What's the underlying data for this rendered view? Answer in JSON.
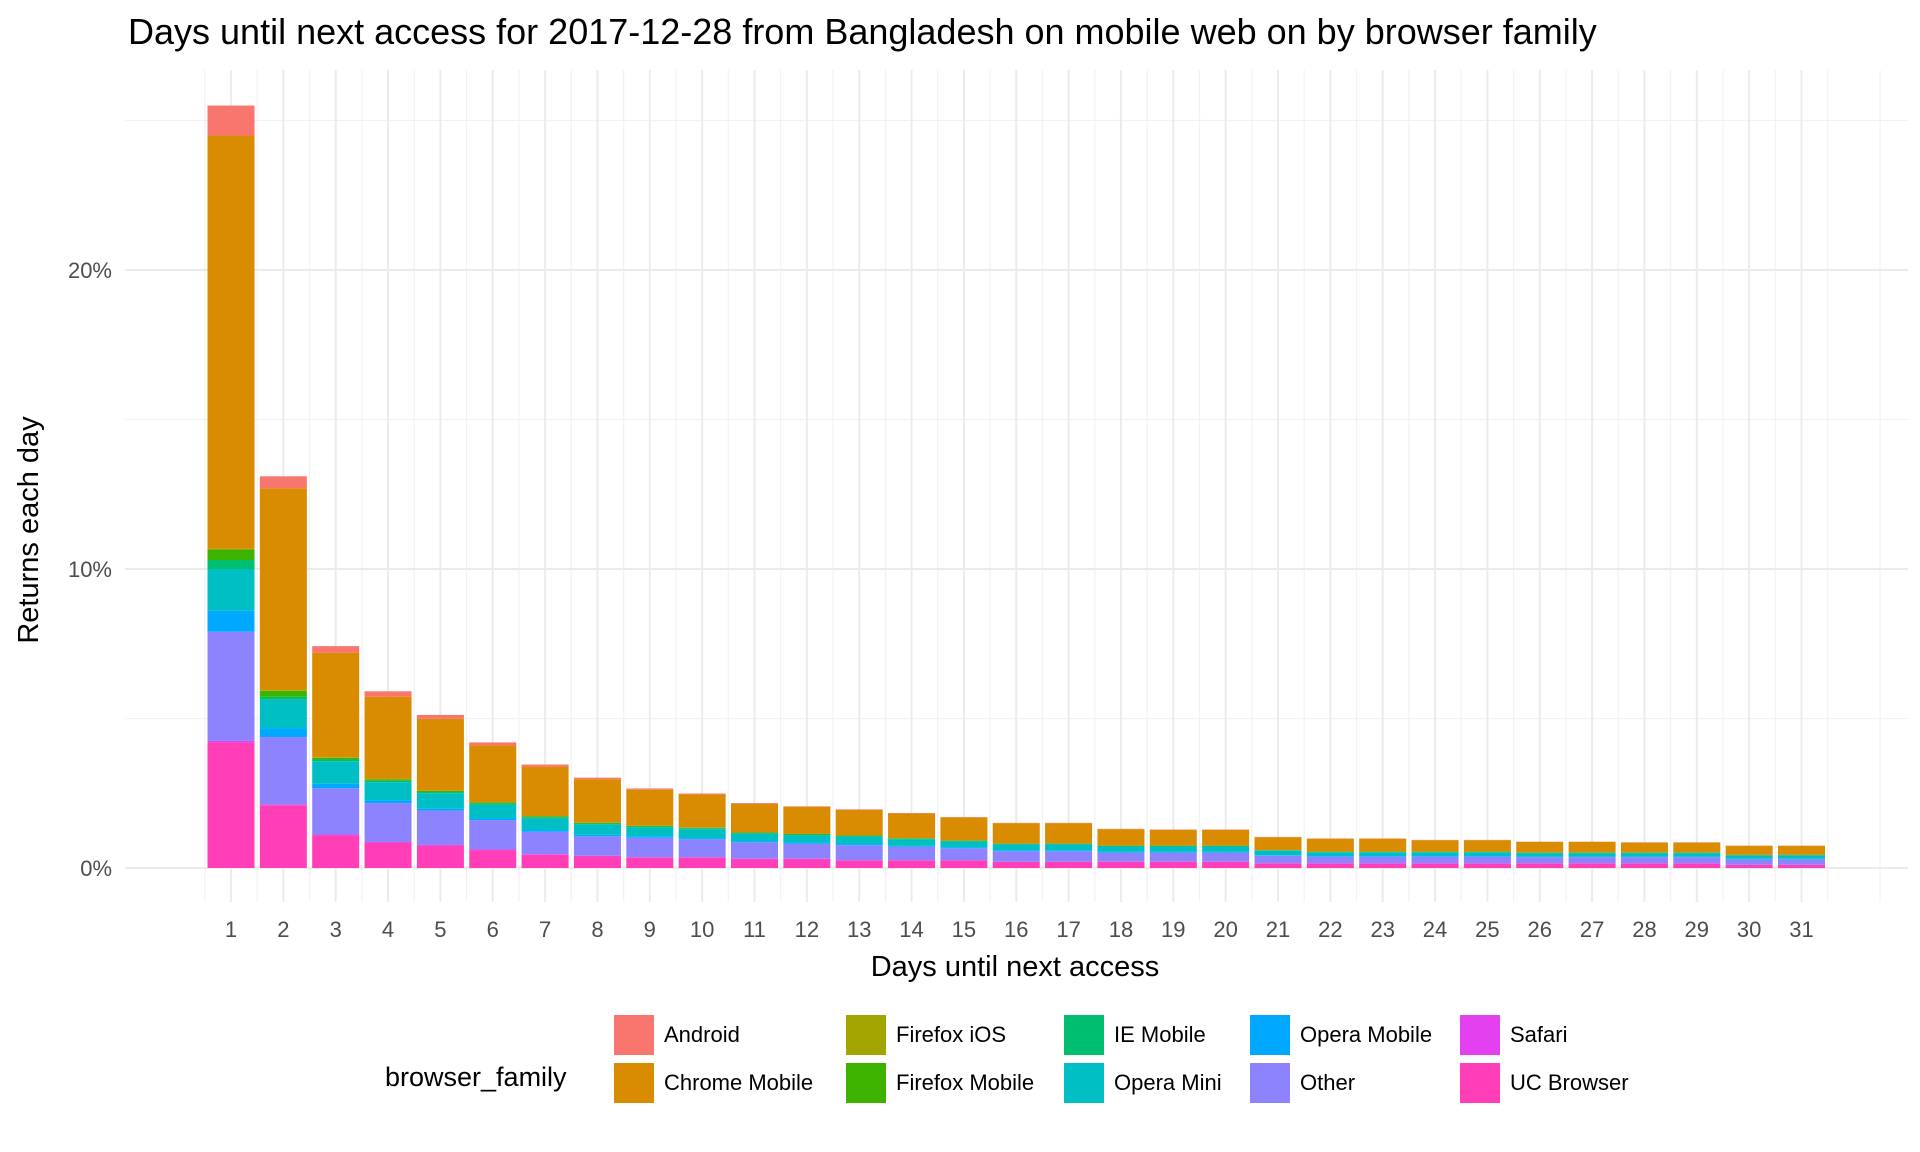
{
  "chart_data": {
    "type": "bar",
    "stacked": true,
    "title": "Days until next access for 2017-12-28 from Bangladesh on mobile web on by browser family",
    "xlabel": "Days until next access",
    "ylabel": "Returns each day",
    "ylim": [
      0,
      0.262
    ],
    "yticks": [
      0,
      0.1,
      0.2
    ],
    "ytick_labels": [
      "0%",
      "10%",
      "20%"
    ],
    "grid": true,
    "legend": {
      "title": "browser_family",
      "position": "bottom"
    },
    "categories": [
      "1",
      "2",
      "3",
      "4",
      "5",
      "6",
      "7",
      "8",
      "9",
      "10",
      "11",
      "12",
      "13",
      "14",
      "15",
      "16",
      "17",
      "18",
      "19",
      "20",
      "21",
      "22",
      "23",
      "24",
      "25",
      "26",
      "27",
      "28",
      "29",
      "30",
      "31"
    ],
    "series": [
      {
        "name": "UC Browser",
        "color": "#FF3EB8",
        "values": [
          0.042,
          0.021,
          0.011,
          0.0085,
          0.0075,
          0.006,
          0.0045,
          0.004,
          0.0035,
          0.0035,
          0.003,
          0.003,
          0.0025,
          0.0025,
          0.0025,
          0.002,
          0.002,
          0.002,
          0.002,
          0.002,
          0.0015,
          0.0015,
          0.0015,
          0.0015,
          0.0015,
          0.0015,
          0.0015,
          0.0015,
          0.0015,
          0.001,
          0.001
        ]
      },
      {
        "name": "Safari",
        "color": "#E341F0",
        "values": [
          0.0005,
          0.0003,
          0.0002,
          0.0002,
          0.0002,
          0.0002,
          0.0001,
          0.0001,
          0.0001,
          0.0001,
          0.0001,
          0.0001,
          0.0001,
          0.0001,
          0.0001,
          0.0001,
          0.0001,
          0.0001,
          0.0001,
          0.0001,
          0.0001,
          0.0001,
          0.0001,
          0.0001,
          0.0001,
          0.0001,
          0.0001,
          0.0001,
          0.0001,
          0.0001,
          0.0001
        ]
      },
      {
        "name": "Other",
        "color": "#8E83FF",
        "values": [
          0.0365,
          0.0225,
          0.0155,
          0.013,
          0.0115,
          0.0098,
          0.0075,
          0.0065,
          0.0065,
          0.006,
          0.0055,
          0.005,
          0.005,
          0.0045,
          0.004,
          0.0035,
          0.0035,
          0.003,
          0.003,
          0.003,
          0.0025,
          0.0022,
          0.0022,
          0.0022,
          0.0022,
          0.002,
          0.002,
          0.002,
          0.002,
          0.0018,
          0.0018
        ]
      },
      {
        "name": "Opera Mobile",
        "color": "#00A9FF",
        "values": [
          0.007,
          0.003,
          0.0015,
          0.001,
          0.0008,
          0.0007,
          0.0006,
          0.0005,
          0.0005,
          0.0004,
          0.0004,
          0.0004,
          0.0004,
          0.0003,
          0.0003,
          0.0003,
          0.0003,
          0.0003,
          0.0003,
          0.0003,
          0.0002,
          0.0002,
          0.0002,
          0.0002,
          0.0002,
          0.0002,
          0.0002,
          0.0002,
          0.0002,
          0.0002,
          0.0002
        ]
      },
      {
        "name": "Opera Mini",
        "color": "#00BFC4",
        "values": [
          0.014,
          0.0095,
          0.0075,
          0.006,
          0.005,
          0.0045,
          0.004,
          0.0035,
          0.003,
          0.003,
          0.0025,
          0.0025,
          0.0025,
          0.0022,
          0.002,
          0.002,
          0.002,
          0.0018,
          0.0018,
          0.0018,
          0.0015,
          0.0013,
          0.0013,
          0.0013,
          0.0013,
          0.0012,
          0.0012,
          0.0012,
          0.0012,
          0.0011,
          0.0011
        ]
      },
      {
        "name": "IE Mobile",
        "color": "#00BE6F",
        "values": [
          0.003,
          0.001,
          0.0006,
          0.0005,
          0.0004,
          0.0004,
          0.0003,
          0.0003,
          0.0003,
          0.0003,
          0.0002,
          0.0002,
          0.0002,
          0.0002,
          0.0002,
          0.0002,
          0.0002,
          0.0002,
          0.0002,
          0.0002,
          0.0001,
          0.0001,
          0.0001,
          0.0001,
          0.0001,
          0.0001,
          0.0001,
          0.0001,
          0.0001,
          0.0001,
          0.0001
        ]
      },
      {
        "name": "Firefox Mobile",
        "color": "#3DB300",
        "values": [
          0.0035,
          0.002,
          0.0006,
          0.0005,
          0.0004,
          0.0003,
          0.0003,
          0.0002,
          0.0002,
          0.0002,
          0.0002,
          0.0002,
          0.0002,
          0.0002,
          0.0001,
          0.0001,
          0.0001,
          0.0001,
          0.0001,
          0.0001,
          0.0001,
          0.0001,
          0.0001,
          0.0001,
          0.0001,
          0.0001,
          0.0001,
          0.0001,
          0.0001,
          0.0001,
          0.0001
        ]
      },
      {
        "name": "Firefox iOS",
        "color": "#A3A500",
        "values": [
          0.0003,
          0.0002,
          0.0001,
          0.0001,
          0.0001,
          0.0001,
          0.0001,
          0.0001,
          0.0001,
          0.0001,
          0,
          0,
          0,
          0,
          0,
          0,
          0,
          0,
          0,
          0,
          0,
          0,
          0,
          0,
          0,
          0,
          0,
          0,
          0,
          0,
          0
        ]
      },
      {
        "name": "Chrome Mobile",
        "color": "#D98C00",
        "values": [
          0.1382,
          0.0675,
          0.035,
          0.0275,
          0.024,
          0.019,
          0.0165,
          0.0145,
          0.012,
          0.011,
          0.0095,
          0.009,
          0.0085,
          0.0082,
          0.0077,
          0.0068,
          0.0068,
          0.0055,
          0.0053,
          0.0053,
          0.0043,
          0.0043,
          0.0043,
          0.0038,
          0.0038,
          0.0035,
          0.0035,
          0.0033,
          0.0033,
          0.003,
          0.003
        ]
      },
      {
        "name": "Android",
        "color": "#F8766D",
        "values": [
          0.01,
          0.004,
          0.0022,
          0.0018,
          0.0013,
          0.001,
          0.0007,
          0.0005,
          0.0004,
          0.0003,
          0.0003,
          0.0002,
          0.0002,
          0.0002,
          0.0001,
          0.0001,
          0.0001,
          0.0001,
          0.0001,
          0.0001,
          0.0001,
          0.0001,
          0.0001,
          0.0001,
          0.0001,
          0.0001,
          0.0001,
          0.0001,
          0.0001,
          0.0001,
          0.0001
        ]
      }
    ],
    "legend_order": [
      "Android",
      "Chrome Mobile",
      "Firefox iOS",
      "Firefox Mobile",
      "IE Mobile",
      "Opera Mini",
      "Opera Mobile",
      "Other",
      "Safari",
      "UC Browser"
    ]
  }
}
